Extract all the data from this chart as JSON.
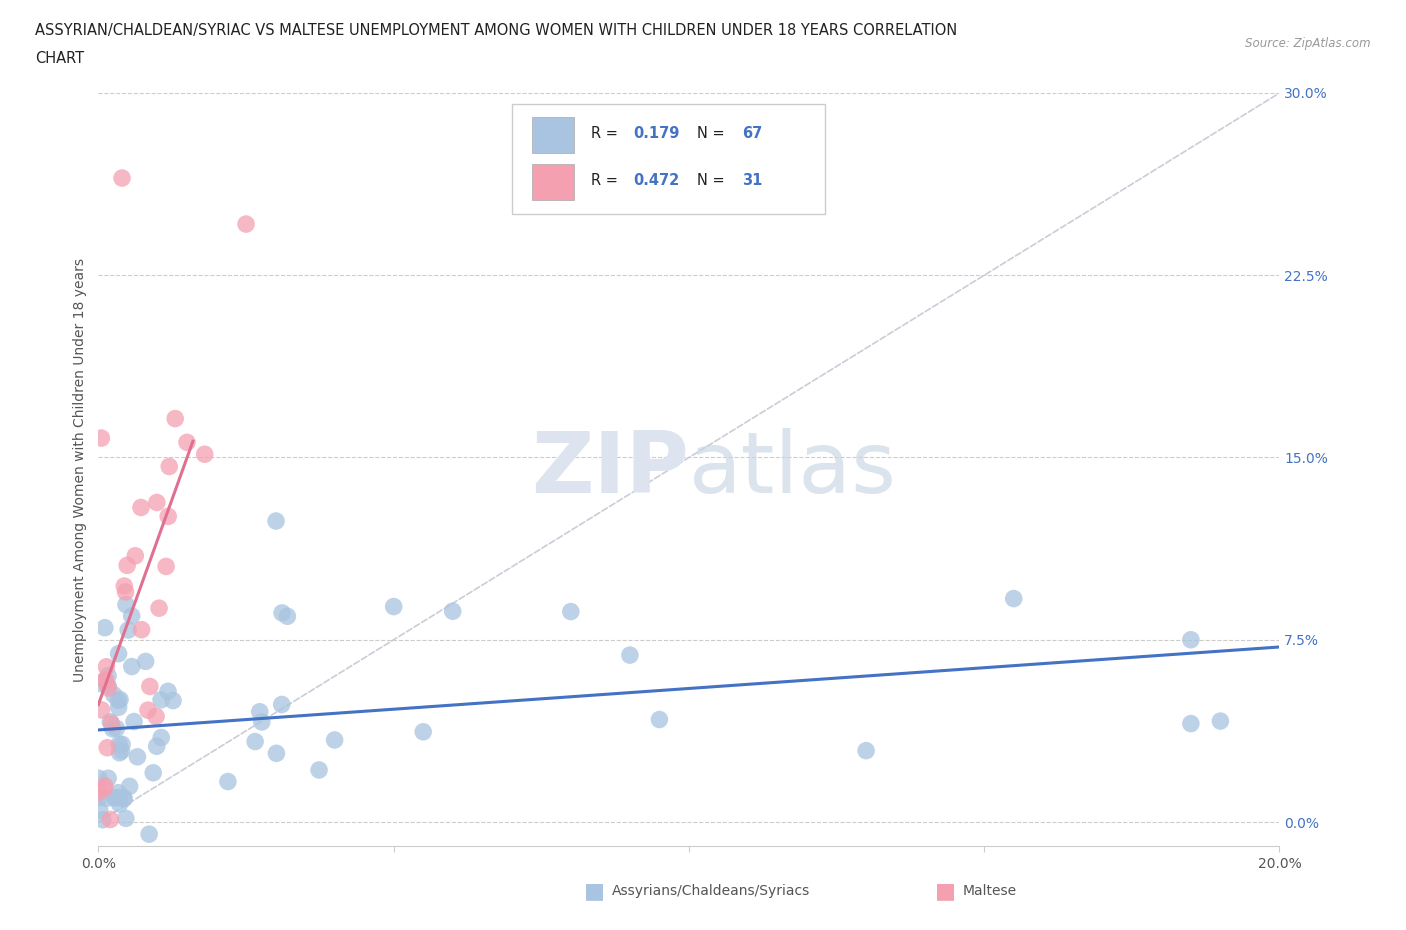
{
  "title_line1": "ASSYRIAN/CHALDEAN/SYRIAC VS MALTESE UNEMPLOYMENT AMONG WOMEN WITH CHILDREN UNDER 18 YEARS CORRELATION",
  "title_line2": "CHART",
  "source": "Source: ZipAtlas.com",
  "ylabel": "Unemployment Among Women with Children Under 18 years",
  "xlim": [
    0.0,
    0.2
  ],
  "ylim": [
    -0.01,
    0.3
  ],
  "yticks": [
    0.0,
    0.075,
    0.15,
    0.225,
    0.3
  ],
  "ytick_labels": [
    "0.0%",
    "7.5%",
    "15.0%",
    "22.5%",
    "30.0%"
  ],
  "xticks": [
    0.0,
    0.05,
    0.1,
    0.15,
    0.2
  ],
  "xtick_labels": [
    "0.0%",
    "",
    "",
    "",
    "20.0%"
  ],
  "watermark": "ZIPatlas",
  "blue_R": 0.179,
  "blue_N": 67,
  "pink_R": 0.472,
  "pink_N": 31,
  "blue_color": "#a8c4e0",
  "pink_color": "#f4a0b0",
  "blue_line_color": "#4472c4",
  "pink_line_color": "#e07090",
  "diag_color": "#c8cdd8",
  "background_color": "#ffffff",
  "legend_label_blue": "Assyrians/Chaldeans/Syriacs",
  "legend_label_pink": "Maltese"
}
